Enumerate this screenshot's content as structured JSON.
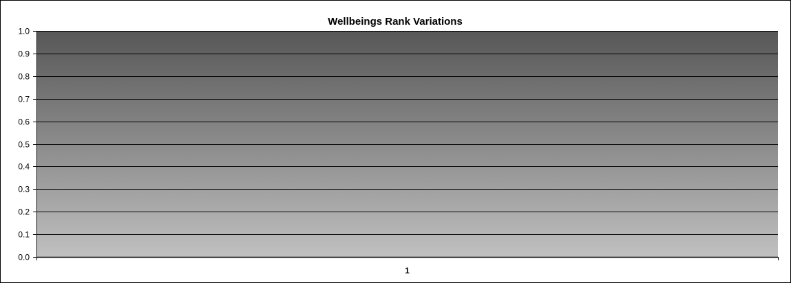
{
  "chart_data": {
    "type": "bar",
    "title": "Wellbeings Rank Variations",
    "xlabel": "",
    "ylabel": "",
    "categories": [
      "1"
    ],
    "series": [],
    "ylim": [
      0,
      1.0
    ],
    "yticks": [
      "0.0",
      "0.1",
      "0.2",
      "0.3",
      "0.4",
      "0.5",
      "0.6",
      "0.7",
      "0.8",
      "0.9",
      "1.0"
    ],
    "grid": true,
    "legend": "none"
  },
  "colors": {
    "plot_top": "#575757",
    "plot_bottom": "#c0c0c0",
    "gridline": "#000000"
  }
}
